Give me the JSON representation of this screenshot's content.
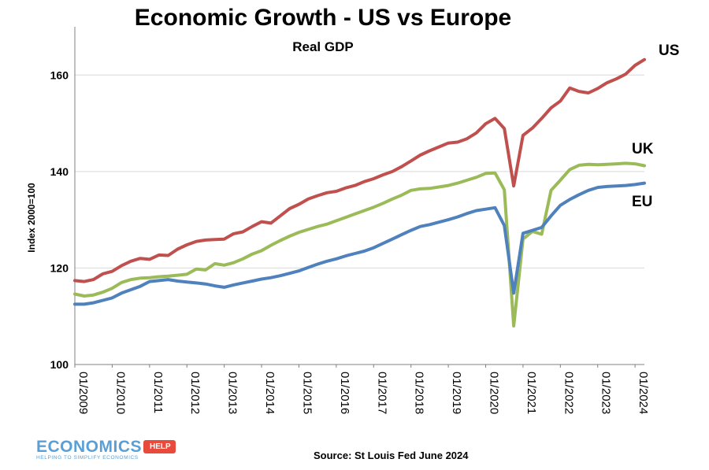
{
  "title": "Economic Growth - US vs Europe",
  "subtitle": "Real GDP",
  "source": "Source: St Louis Fed June 2024",
  "logo": {
    "main": "ECONOMICS",
    "tag": "HELP",
    "tagline": "HELPING TO SIMPLIFY ECONOMICS"
  },
  "colors": {
    "US": "#c0504d",
    "UK": "#9bbb59",
    "EU": "#4f81bd",
    "grid": "#d9d9d9"
  },
  "chart_data": {
    "type": "line",
    "title": "Economic Growth - US vs Europe",
    "subtitle": "Real GDP",
    "ylabel": "Index 2000=100",
    "xlabel": "",
    "ylim": [
      100,
      170
    ],
    "yticks": [
      100,
      120,
      140,
      160
    ],
    "xlim": [
      2009.0,
      2024.25
    ],
    "xtick_labels": [
      "01/2009",
      "01/2010",
      "01/2011",
      "01/2012",
      "01/2013",
      "01/2014",
      "01/2015",
      "01/2016",
      "01/2017",
      "01/2018",
      "01/2019",
      "01/2020",
      "01/2021",
      "01/2022",
      "01/2023",
      "01/2024"
    ],
    "grid": true,
    "legend": "inline labels at right end",
    "series": [
      {
        "name": "US",
        "points": [
          [
            2009.0,
            117.4
          ],
          [
            2009.25,
            117.2
          ],
          [
            2009.5,
            117.6
          ],
          [
            2009.75,
            118.8
          ],
          [
            2010.0,
            119.3
          ],
          [
            2010.25,
            120.5
          ],
          [
            2010.5,
            121.4
          ],
          [
            2010.75,
            122.0
          ],
          [
            2011.0,
            121.8
          ],
          [
            2011.25,
            122.7
          ],
          [
            2011.5,
            122.6
          ],
          [
            2011.75,
            123.9
          ],
          [
            2012.0,
            124.8
          ],
          [
            2012.25,
            125.5
          ],
          [
            2012.5,
            125.8
          ],
          [
            2012.75,
            125.9
          ],
          [
            2013.0,
            126.0
          ],
          [
            2013.25,
            127.1
          ],
          [
            2013.5,
            127.5
          ],
          [
            2013.75,
            128.6
          ],
          [
            2014.0,
            129.6
          ],
          [
            2014.25,
            129.3
          ],
          [
            2014.5,
            130.8
          ],
          [
            2014.75,
            132.3
          ],
          [
            2015.0,
            133.2
          ],
          [
            2015.25,
            134.3
          ],
          [
            2015.5,
            135.0
          ],
          [
            2015.75,
            135.6
          ],
          [
            2016.0,
            135.9
          ],
          [
            2016.25,
            136.6
          ],
          [
            2016.5,
            137.1
          ],
          [
            2016.75,
            137.9
          ],
          [
            2017.0,
            138.5
          ],
          [
            2017.25,
            139.3
          ],
          [
            2017.5,
            140.0
          ],
          [
            2017.75,
            141.0
          ],
          [
            2018.0,
            142.2
          ],
          [
            2018.25,
            143.4
          ],
          [
            2018.5,
            144.3
          ],
          [
            2018.75,
            145.1
          ],
          [
            2019.0,
            145.9
          ],
          [
            2019.25,
            146.1
          ],
          [
            2019.5,
            146.8
          ],
          [
            2019.75,
            148.0
          ],
          [
            2020.0,
            149.9
          ],
          [
            2020.25,
            151.0
          ],
          [
            2020.5,
            148.9
          ],
          [
            2020.75,
            137.0
          ],
          [
            2021.0,
            147.5
          ],
          [
            2021.25,
            149.0
          ],
          [
            2021.5,
            151.0
          ],
          [
            2021.75,
            153.2
          ],
          [
            2022.0,
            154.6
          ],
          [
            2022.25,
            157.3
          ],
          [
            2022.5,
            156.6
          ],
          [
            2022.75,
            156.3
          ],
          [
            2023.0,
            157.2
          ],
          [
            2023.25,
            158.4
          ],
          [
            2023.5,
            159.2
          ],
          [
            2023.75,
            160.2
          ],
          [
            2024.0,
            162.0
          ],
          [
            2024.25,
            163.2
          ]
        ]
      },
      {
        "name": "UK",
        "points": [
          [
            2009.0,
            114.6
          ],
          [
            2009.25,
            114.2
          ],
          [
            2009.5,
            114.4
          ],
          [
            2009.75,
            115.0
          ],
          [
            2010.0,
            115.8
          ],
          [
            2010.25,
            117.0
          ],
          [
            2010.5,
            117.6
          ],
          [
            2010.75,
            117.9
          ],
          [
            2011.0,
            118.0
          ],
          [
            2011.25,
            118.2
          ],
          [
            2011.5,
            118.3
          ],
          [
            2011.75,
            118.5
          ],
          [
            2012.0,
            118.7
          ],
          [
            2012.25,
            119.8
          ],
          [
            2012.5,
            119.6
          ],
          [
            2012.75,
            120.9
          ],
          [
            2013.0,
            120.6
          ],
          [
            2013.25,
            121.1
          ],
          [
            2013.5,
            121.9
          ],
          [
            2013.75,
            122.9
          ],
          [
            2014.0,
            123.6
          ],
          [
            2014.25,
            124.7
          ],
          [
            2014.5,
            125.7
          ],
          [
            2014.75,
            126.6
          ],
          [
            2015.0,
            127.4
          ],
          [
            2015.25,
            128.0
          ],
          [
            2015.5,
            128.6
          ],
          [
            2015.75,
            129.1
          ],
          [
            2016.0,
            129.8
          ],
          [
            2016.25,
            130.5
          ],
          [
            2016.5,
            131.2
          ],
          [
            2016.75,
            131.9
          ],
          [
            2017.0,
            132.6
          ],
          [
            2017.25,
            133.4
          ],
          [
            2017.5,
            134.3
          ],
          [
            2017.75,
            135.1
          ],
          [
            2018.0,
            136.1
          ],
          [
            2018.25,
            136.4
          ],
          [
            2018.5,
            136.5
          ],
          [
            2018.75,
            136.8
          ],
          [
            2019.0,
            137.1
          ],
          [
            2019.25,
            137.6
          ],
          [
            2019.5,
            138.2
          ],
          [
            2019.75,
            138.8
          ],
          [
            2020.0,
            139.6
          ],
          [
            2020.25,
            139.7
          ],
          [
            2020.5,
            136.2
          ],
          [
            2020.75,
            108.0
          ],
          [
            2021.0,
            126.0
          ],
          [
            2021.25,
            127.6
          ],
          [
            2021.5,
            127.0
          ],
          [
            2021.75,
            136.1
          ],
          [
            2022.0,
            138.2
          ],
          [
            2022.25,
            140.4
          ],
          [
            2022.5,
            141.3
          ],
          [
            2022.75,
            141.5
          ],
          [
            2023.0,
            141.4
          ],
          [
            2023.25,
            141.5
          ],
          [
            2023.5,
            141.6
          ],
          [
            2023.75,
            141.7
          ],
          [
            2024.0,
            141.6
          ],
          [
            2024.25,
            141.2
          ]
        ]
      },
      {
        "name": "EU",
        "points": [
          [
            2009.0,
            112.5
          ],
          [
            2009.25,
            112.5
          ],
          [
            2009.5,
            112.8
          ],
          [
            2009.75,
            113.3
          ],
          [
            2010.0,
            113.8
          ],
          [
            2010.25,
            114.8
          ],
          [
            2010.5,
            115.5
          ],
          [
            2010.75,
            116.2
          ],
          [
            2011.0,
            117.2
          ],
          [
            2011.25,
            117.4
          ],
          [
            2011.5,
            117.6
          ],
          [
            2011.75,
            117.3
          ],
          [
            2012.0,
            117.1
          ],
          [
            2012.25,
            116.9
          ],
          [
            2012.5,
            116.7
          ],
          [
            2012.75,
            116.3
          ],
          [
            2013.0,
            116.0
          ],
          [
            2013.25,
            116.5
          ],
          [
            2013.5,
            116.9
          ],
          [
            2013.75,
            117.3
          ],
          [
            2014.0,
            117.7
          ],
          [
            2014.25,
            118.0
          ],
          [
            2014.5,
            118.4
          ],
          [
            2014.75,
            118.9
          ],
          [
            2015.0,
            119.4
          ],
          [
            2015.25,
            120.1
          ],
          [
            2015.5,
            120.8
          ],
          [
            2015.75,
            121.4
          ],
          [
            2016.0,
            121.9
          ],
          [
            2016.25,
            122.5
          ],
          [
            2016.5,
            123.0
          ],
          [
            2016.75,
            123.5
          ],
          [
            2017.0,
            124.2
          ],
          [
            2017.25,
            125.1
          ],
          [
            2017.5,
            126.0
          ],
          [
            2017.75,
            126.9
          ],
          [
            2018.0,
            127.8
          ],
          [
            2018.25,
            128.6
          ],
          [
            2018.5,
            129.0
          ],
          [
            2018.75,
            129.5
          ],
          [
            2019.0,
            130.0
          ],
          [
            2019.25,
            130.6
          ],
          [
            2019.5,
            131.3
          ],
          [
            2019.75,
            131.9
          ],
          [
            2020.0,
            132.2
          ],
          [
            2020.25,
            132.5
          ],
          [
            2020.5,
            128.8
          ],
          [
            2020.75,
            114.8
          ],
          [
            2021.0,
            127.2
          ],
          [
            2021.25,
            127.8
          ],
          [
            2021.5,
            128.4
          ],
          [
            2021.75,
            130.8
          ],
          [
            2022.0,
            133.0
          ],
          [
            2022.25,
            134.2
          ],
          [
            2022.5,
            135.2
          ],
          [
            2022.75,
            136.1
          ],
          [
            2023.0,
            136.7
          ],
          [
            2023.25,
            136.9
          ],
          [
            2023.5,
            137.0
          ],
          [
            2023.75,
            137.1
          ],
          [
            2024.0,
            137.3
          ],
          [
            2024.25,
            137.6
          ]
        ]
      }
    ]
  }
}
